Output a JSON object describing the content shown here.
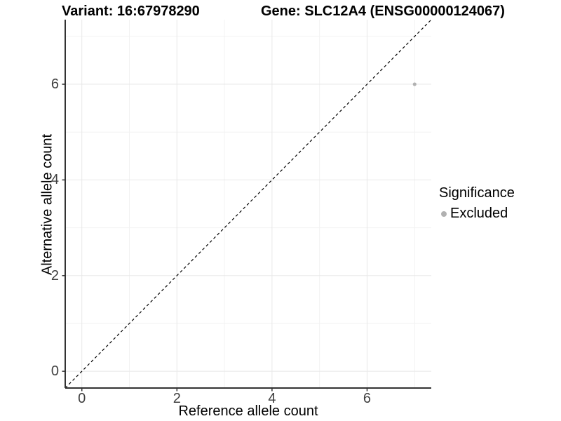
{
  "titles": {
    "variant": "Variant: 16:67978290",
    "gene": "Gene: SLC12A4 (ENSG00000124067)"
  },
  "chart_data": {
    "type": "scatter",
    "xlabel": "Reference allele count",
    "ylabel": "Alternative allele count",
    "xlim": [
      -0.35,
      7.35
    ],
    "ylim": [
      -0.35,
      7.35
    ],
    "x_ticks": [
      0,
      2,
      4,
      6
    ],
    "y_ticks": [
      0,
      2,
      4,
      6
    ],
    "grid_major": [
      0,
      2,
      4,
      6
    ],
    "grid_minor": [
      1,
      3,
      5,
      7
    ],
    "identity_line": {
      "from": [
        -0.35,
        -0.35
      ],
      "to": [
        7.35,
        7.35
      ],
      "style": "dashed",
      "color": "#000000"
    },
    "series": [
      {
        "name": "Excluded",
        "color": "#b1b1b1",
        "points": [
          {
            "x": 7,
            "y": 6
          }
        ]
      }
    ],
    "legend": {
      "title": "Significance",
      "position": "right",
      "entries": [
        {
          "label": "Excluded",
          "color": "#b1b1b1"
        }
      ]
    },
    "grid": {
      "major_color": "#e8e8e8",
      "minor_color": "#f2f2f2"
    },
    "axis_color": "#333333"
  }
}
